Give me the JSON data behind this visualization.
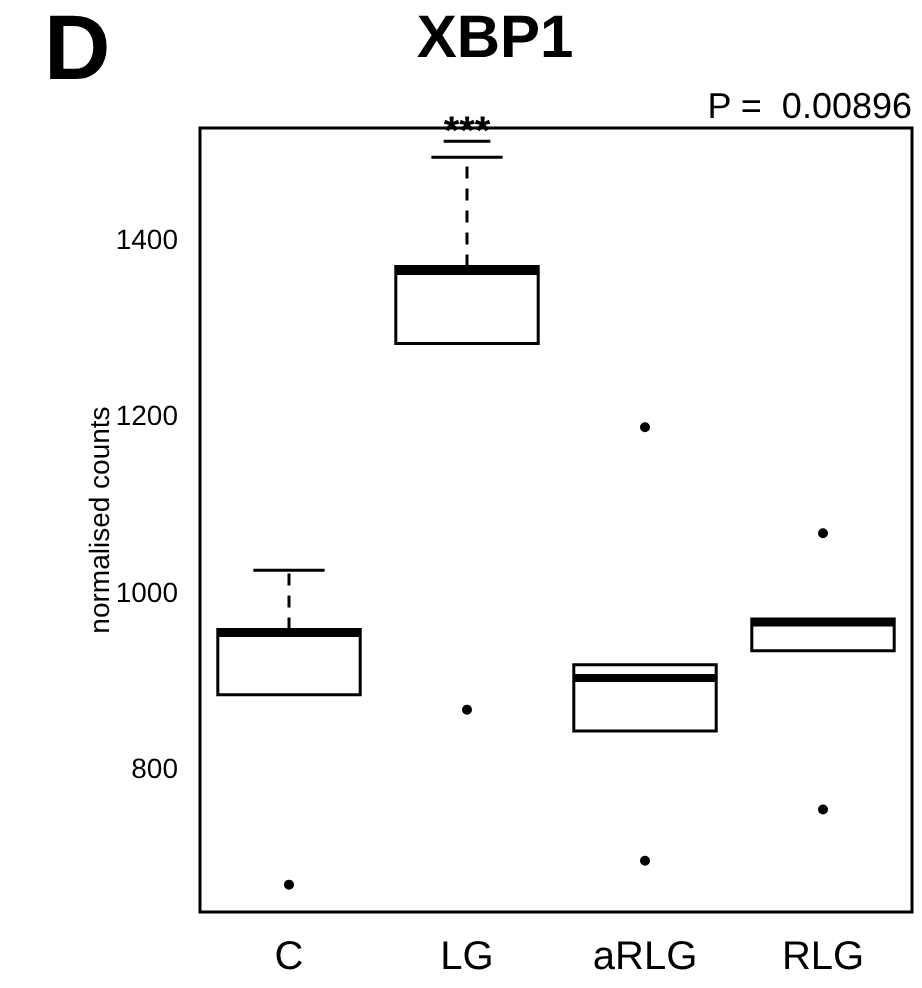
{
  "chart_data": {
    "type": "box",
    "title": "XBP1",
    "ylabel": "normalised counts",
    "categories": [
      "C",
      "LG",
      "aRLG",
      "RLG"
    ],
    "boxes": [
      {
        "low": 886,
        "q1": 886,
        "median": 956,
        "q3": 960,
        "high": 1027,
        "outliers": [
          671
        ]
      },
      {
        "low": 1284,
        "q1": 1284,
        "median": 1366,
        "q3": 1371,
        "high": 1495,
        "outliers": [
          869
        ]
      },
      {
        "low": 845,
        "q1": 845,
        "median": 905,
        "q3": 920,
        "high": 920,
        "outliers": [
          1189,
          698
        ]
      },
      {
        "low": 936,
        "q1": 936,
        "median": 968,
        "q3": 972,
        "high": 972,
        "outliers": [
          1069,
          756
        ]
      }
    ],
    "color": "#000000",
    "ylim": [
      640,
      1528
    ],
    "yticks": [
      800,
      1000,
      1200,
      1400
    ],
    "grid": false,
    "annotations": [
      "D",
      "P =  0.00896",
      "***"
    ]
  }
}
